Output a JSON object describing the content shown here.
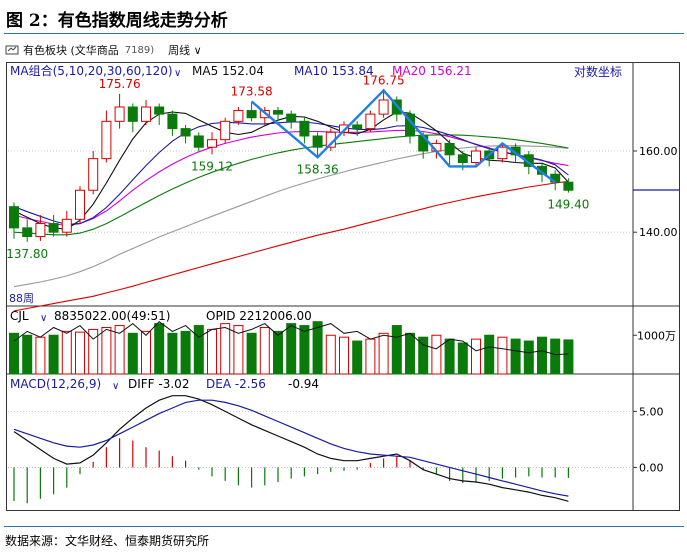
{
  "figure_title": "图 2：有色指数周线走势分析",
  "toolbar": {
    "instrument": "有色板块 (文华商品",
    "code": "7189)",
    "period": "周线"
  },
  "source_note": "数据来源：文华财经、恒泰期货研究所",
  "chart_data": [
    {
      "type": "candlestick",
      "panel": "price",
      "indicator_label": "MA组合(5,10,20,30,60,120)",
      "right_corner_label": "对数坐标",
      "period_label": "88周",
      "ma_values": [
        {
          "name": "MA5",
          "value": "152.04",
          "color": "#111111"
        },
        {
          "name": "MA10",
          "value": "153.84",
          "color": "#1a1aa6"
        },
        {
          "name": "MA20",
          "value": "156.21",
          "color": "#d400d4"
        }
      ],
      "y_ticks": [
        {
          "value": 160,
          "label": "160.00"
        },
        {
          "value": 140,
          "label": "140.00"
        }
      ],
      "ylim": [
        124,
        184
      ],
      "annotations": [
        {
          "i": 1,
          "value": 137.8,
          "label": "137.80",
          "kind": "low"
        },
        {
          "i": 8,
          "value": 175.76,
          "label": "175.76",
          "kind": "high"
        },
        {
          "i": 15,
          "value": 159.12,
          "label": "159.12",
          "kind": "low"
        },
        {
          "i": 18,
          "value": 173.58,
          "label": "173.58",
          "kind": "high"
        },
        {
          "i": 23,
          "value": 158.36,
          "label": "158.36",
          "kind": "low"
        },
        {
          "i": 28,
          "value": 176.75,
          "label": "176.75",
          "kind": "high"
        },
        {
          "i": 42,
          "value": 149.4,
          "label": "149.40",
          "kind": "low"
        }
      ],
      "candles": [
        [
          146,
          141,
          147,
          138.5
        ],
        [
          141,
          139,
          143,
          137.8
        ],
        [
          139,
          142,
          144,
          138
        ],
        [
          142,
          140,
          144,
          139
        ],
        [
          140,
          143,
          145,
          139
        ],
        [
          143,
          150,
          151,
          142
        ],
        [
          150,
          158,
          160,
          149
        ],
        [
          158,
          168,
          171,
          157
        ],
        [
          168,
          172,
          175.76,
          166
        ],
        [
          172,
          168,
          173,
          165
        ],
        [
          168,
          172,
          174,
          167
        ],
        [
          172,
          170,
          173,
          167
        ],
        [
          170,
          166,
          171,
          164
        ],
        [
          166,
          164,
          167,
          162
        ],
        [
          164,
          161,
          165,
          160
        ],
        [
          161,
          163,
          165,
          159.12
        ],
        [
          163,
          168,
          169,
          162
        ],
        [
          168,
          171,
          172,
          167
        ],
        [
          171,
          169,
          173.58,
          168
        ],
        [
          169,
          171,
          172,
          167
        ],
        [
          171,
          170,
          172,
          168
        ],
        [
          170,
          168,
          171,
          166
        ],
        [
          168,
          164,
          169,
          162
        ],
        [
          164,
          161,
          165,
          158.36
        ],
        [
          161,
          165,
          166,
          160
        ],
        [
          165,
          167,
          168,
          164
        ],
        [
          167,
          166,
          168,
          164
        ],
        [
          166,
          170,
          171,
          165
        ],
        [
          170,
          174,
          176.75,
          169
        ],
        [
          174,
          170,
          175,
          168
        ],
        [
          170,
          164,
          171,
          162
        ],
        [
          164,
          160,
          165,
          158
        ],
        [
          160,
          162,
          163,
          158
        ],
        [
          162,
          159,
          163,
          156
        ],
        [
          159,
          157,
          160,
          155
        ],
        [
          157,
          160,
          161,
          156
        ],
        [
          160,
          158,
          161,
          156
        ],
        [
          158,
          161,
          162,
          157
        ],
        [
          161,
          159,
          162,
          157
        ],
        [
          159,
          156,
          160,
          154
        ],
        [
          156,
          154,
          157,
          152
        ],
        [
          154,
          152,
          155,
          150
        ],
        [
          152,
          150,
          153,
          149.4
        ]
      ],
      "series": [
        {
          "name": "MA120",
          "color": "#d80000",
          "values": [
            123,
            123.5,
            124,
            124.5,
            125,
            125.5,
            126,
            126.7,
            127.4,
            128.1,
            128.9,
            129.7,
            130.5,
            131.3,
            132.1,
            132.9,
            133.7,
            134.5,
            135.3,
            136.1,
            136.9,
            137.7,
            138.5,
            139.3,
            140,
            140.7,
            141.5,
            142.3,
            143.1,
            143.9,
            144.7,
            145.5,
            146.3,
            147,
            147.7,
            148.4,
            149,
            149.6,
            150.2,
            150.8,
            151.3,
            151.8,
            152.2
          ]
        },
        {
          "name": "MA60",
          "color": "#999999",
          "values": [
            128,
            128.5,
            129,
            129.6,
            130.3,
            131.2,
            132.3,
            133.6,
            135,
            136.3,
            137.6,
            138.9,
            140.1,
            141.3,
            142.5,
            143.7,
            144.9,
            146.1,
            147.3,
            148.5,
            149.7,
            150.8,
            151.8,
            152.8,
            153.7,
            154.6,
            155.5,
            156.3,
            157.1,
            157.9,
            158.6,
            159.3,
            159.9,
            160.4,
            160.8,
            161.1,
            161.3,
            161.4,
            161.4,
            161.3,
            161.2,
            161,
            160.7
          ]
        },
        {
          "name": "MA30",
          "color": "#0a7a0a",
          "values": [
            140,
            139.8,
            139.6,
            139.4,
            139.4,
            139.8,
            140.7,
            142,
            143.6,
            145.3,
            147,
            148.7,
            150.3,
            151.8,
            153.2,
            154.5,
            155.7,
            156.8,
            157.8,
            158.7,
            159.5,
            160.2,
            160.8,
            161.3,
            161.7,
            162.1,
            162.5,
            162.9,
            163.3,
            163.7,
            164,
            164.2,
            164.3,
            164.3,
            164.2,
            164,
            163.7,
            163.4,
            163,
            162.5,
            162,
            161.4,
            160.8
          ]
        },
        {
          "name": "MA20",
          "color": "#d400d4",
          "values": [
            144,
            143.2,
            142.5,
            141.9,
            141.6,
            142,
            143.2,
            145,
            147.4,
            150,
            152.4,
            154.6,
            156.6,
            158.3,
            159.8,
            161,
            162,
            162.9,
            163.7,
            164.3,
            164.8,
            165.1,
            165.2,
            165.2,
            165.1,
            165,
            165,
            165.1,
            165.3,
            165.5,
            165.5,
            165.2,
            164.6,
            163.8,
            162.8,
            161.8,
            160.8,
            159.9,
            159,
            158.2,
            157.5,
            156.8,
            156.2
          ]
        },
        {
          "name": "MA10",
          "color": "#1a1aa6",
          "values": [
            146,
            144.8,
            143.7,
            142.6,
            141.8,
            142,
            143.4,
            145.8,
            149,
            152.6,
            156.2,
            159.6,
            162.6,
            164.9,
            166.5,
            167.4,
            167.7,
            167.6,
            167.3,
            167.3,
            167.6,
            167.8,
            167.8,
            167.4,
            166.8,
            166.2,
            165.8,
            165.7,
            166,
            166.7,
            166.8,
            166.3,
            165.4,
            164.3,
            163,
            161.7,
            160.6,
            159.7,
            159,
            158.4,
            157.6,
            156.4,
            153.8
          ]
        },
        {
          "name": "MA5",
          "color": "#111111",
          "values": [
            145,
            143.5,
            142,
            141,
            140.7,
            142.8,
            146.6,
            151.8,
            157.6,
            163.2,
            167.6,
            170,
            170.6,
            170.2,
            168.4,
            166.6,
            165,
            164.4,
            165,
            166.8,
            168.3,
            169.4,
            169.2,
            168,
            166.4,
            165,
            164.6,
            165.8,
            168.4,
            170.6,
            170.3,
            168,
            165.4,
            162.2,
            159.4,
            158.2,
            157.6,
            157.4,
            157,
            156.8,
            156.8,
            155.6,
            152
          ]
        }
      ],
      "wave_path": {
        "color": "#1e7fe8",
        "points": [
          [
            18,
            173.58
          ],
          [
            23,
            158.36
          ],
          [
            28,
            176.75
          ],
          [
            33,
            156
          ],
          [
            35,
            156
          ],
          [
            37,
            162
          ],
          [
            41,
            152
          ]
        ]
      }
    },
    {
      "type": "bar",
      "panel": "volume",
      "label": "CJL",
      "value_text": "8835022.00(49:51)",
      "opid_text": "OPID 2212006.00",
      "y_ticks": [
        {
          "value": 1000,
          "label": "1000万"
        }
      ],
      "ylim": [
        0,
        1600
      ],
      "values": [
        1050,
        1000,
        950,
        1000,
        1100,
        1080,
        1150,
        1200,
        1250,
        1050,
        1100,
        1300,
        1050,
        1100,
        1250,
        1150,
        1300,
        1250,
        1050,
        1200,
        1100,
        1300,
        1250,
        1350,
        1000,
        950,
        850,
        900,
        1050,
        1250,
        1050,
        950,
        1000,
        900,
        800,
        900,
        1000,
        950,
        900,
        850,
        950,
        900,
        880
      ],
      "opid_values": [
        850,
        1100,
        950,
        1200,
        1050,
        1250,
        900,
        1150,
        1050,
        1300,
        1000,
        1350,
        1100,
        1250,
        950,
        1150,
        1200,
        1050,
        1150,
        1300,
        1000,
        1250,
        1100,
        1200,
        1300,
        1050,
        1100,
        900,
        1000,
        950,
        1050,
        750,
        650,
        900,
        850,
        600,
        700,
        650,
        600,
        550,
        600,
        500,
        520
      ]
    },
    {
      "type": "bar",
      "panel": "macd",
      "label": "MACD(12,26,9)",
      "diff_text": "DIFF -3.02",
      "dea_text": "DEA -2.56",
      "macd_text": "-0.94",
      "y_ticks": [
        {
          "value": 5,
          "label": "5.00"
        },
        {
          "value": 0,
          "label": "0.00"
        }
      ],
      "ylim": [
        -3.8,
        7.8
      ],
      "hist": [
        -3,
        -3.2,
        -2.8,
        -2.4,
        -1.8,
        -0.6,
        0.5,
        1.8,
        2.6,
        2.4,
        1.8,
        1.5,
        1,
        0.6,
        -0.2,
        -0.8,
        -1.2,
        -1.6,
        -1.8,
        -1.6,
        -1.3,
        -1,
        -0.8,
        -0.6,
        -0.4,
        -0.3,
        -0.2,
        0.4,
        0.8,
        1,
        0.6,
        -0.2,
        -0.6,
        -1.2,
        -1.4,
        -1.3,
        -1.2,
        -1,
        -0.9,
        -0.8,
        -0.9,
        -0.9,
        -0.94
      ],
      "series": [
        {
          "name": "DIFF",
          "color": "#111111",
          "values": [
            3.2,
            2.4,
            1.6,
            0.8,
            0.3,
            0.4,
            1.1,
            2.2,
            3.4,
            4.4,
            5.3,
            6,
            6.4,
            6.4,
            6.1,
            5.6,
            5,
            4.4,
            3.8,
            3.3,
            2.8,
            2.3,
            1.8,
            1.2,
            0.8,
            0.6,
            0.6,
            0.8,
            1,
            1.2,
            0.6,
            -0.2,
            -0.6,
            -1,
            -1.2,
            -1.3,
            -1.5,
            -1.8,
            -2,
            -2.2,
            -2.5,
            -2.7,
            -3.02
          ]
        },
        {
          "name": "DEA",
          "color": "#1a1aa6",
          "values": [
            3.4,
            3,
            2.6,
            2.2,
            1.9,
            1.8,
            2,
            2.4,
            3,
            3.6,
            4.2,
            4.8,
            5.3,
            5.8,
            6,
            6,
            5.8,
            5.5,
            5.1,
            4.6,
            4.1,
            3.6,
            3.1,
            2.6,
            2.1,
            1.7,
            1.4,
            1.2,
            1.1,
            1,
            0.9,
            0.6,
            0.3,
            0,
            -0.3,
            -0.6,
            -0.9,
            -1.2,
            -1.5,
            -1.8,
            -2.1,
            -2.35,
            -2.56
          ]
        }
      ]
    }
  ]
}
